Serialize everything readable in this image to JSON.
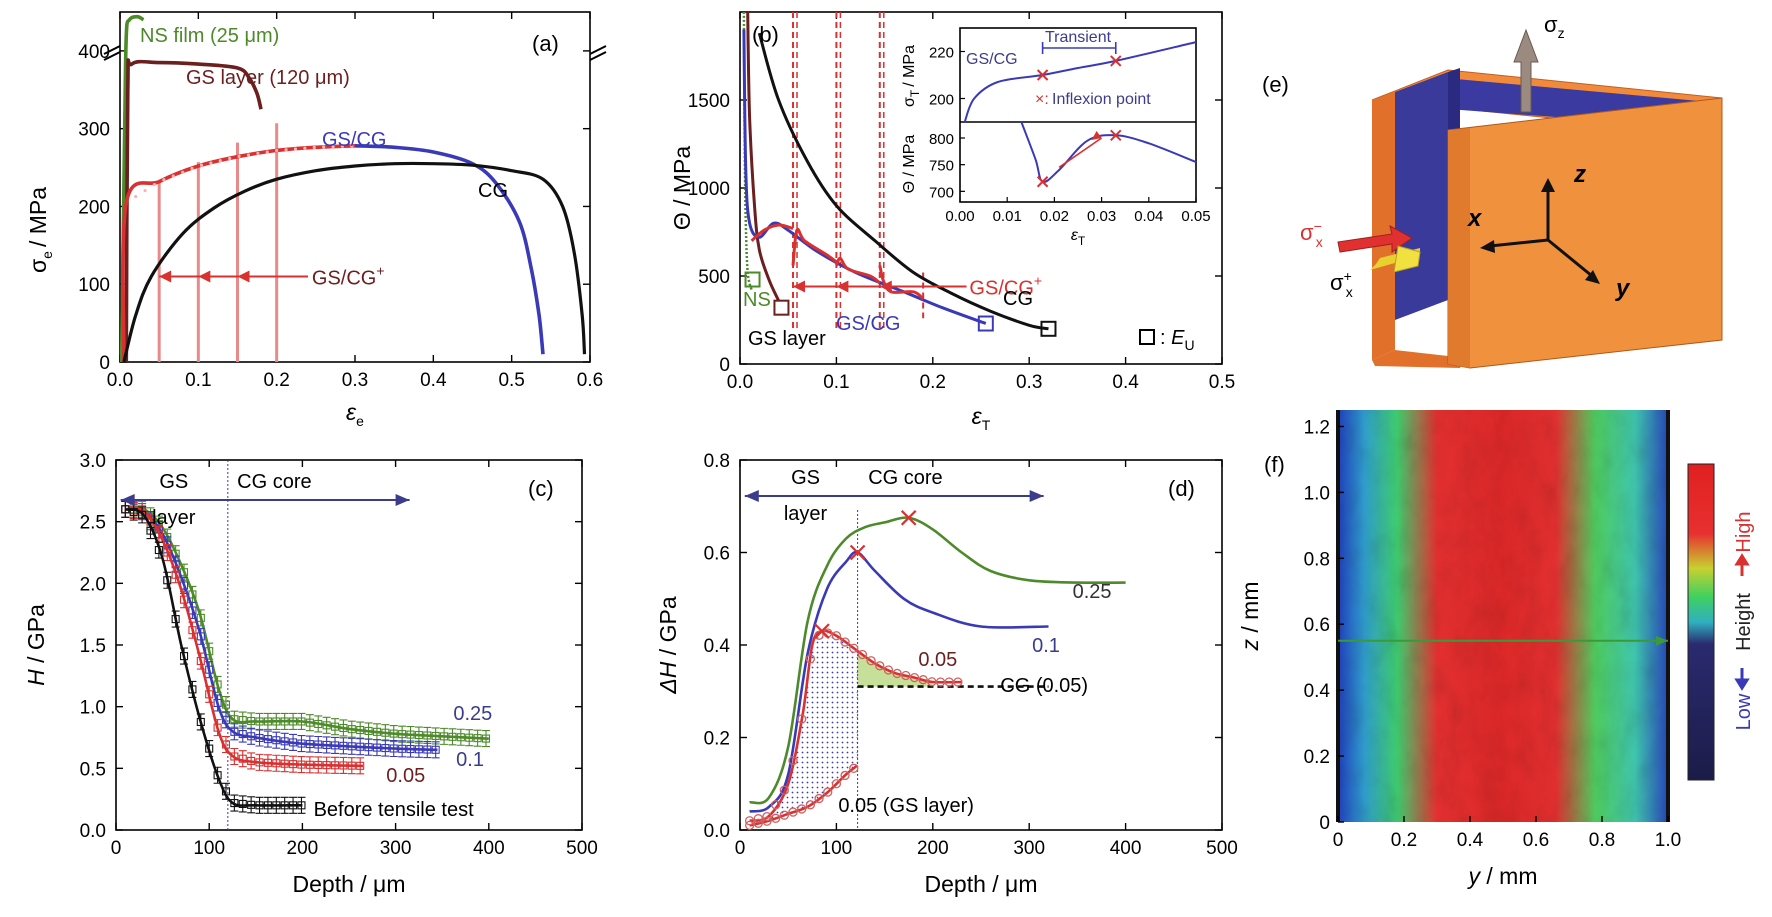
{
  "colors": {
    "red": "#d93030",
    "blue": "#3a3ab8",
    "black": "#111111",
    "green": "#4c8a2a",
    "brown": "#6b1f1f",
    "orange": "#f08a3a",
    "purple": "#3c3c8c"
  },
  "chart_data": [
    {
      "panel": "(a)",
      "type": "line",
      "xlabel": "ε",
      "xlabel_sub": "e",
      "ylabel": "σ",
      "ylabel_sub": "e",
      "ylabel_unit": "/ MPa",
      "xlim": [
        0,
        0.6
      ],
      "ylim": [
        0,
        450
      ],
      "xticks": [
        "0.0",
        "0.1",
        "0.2",
        "0.3",
        "0.4",
        "0.5",
        "0.6"
      ],
      "yticks": [
        "0",
        "100",
        "200",
        "300",
        "400"
      ],
      "series": [
        {
          "name": "NS film (25 μm)",
          "color": "green",
          "points": [
            [
              0.002,
              0
            ],
            [
              0.006,
              300
            ],
            [
              0.008,
              420
            ],
            [
              0.012,
              440
            ],
            [
              0.022,
              444
            ],
            [
              0.03,
              440
            ]
          ]
        },
        {
          "name": "GS layer (120 μm)",
          "color": "brown",
          "points": [
            [
              0.008,
              0
            ],
            [
              0.01,
              350
            ],
            [
              0.015,
              383
            ],
            [
              0.05,
              385
            ],
            [
              0.1,
              383
            ],
            [
              0.15,
              378
            ],
            [
              0.165,
              365
            ],
            [
              0.175,
              345
            ],
            [
              0.18,
              325
            ]
          ]
        },
        {
          "name": "GS/CG",
          "color": "red",
          "points": [
            [
              0.005,
              0
            ],
            [
              0.008,
              205
            ],
            [
              0.05,
              232
            ],
            [
              0.1,
              252
            ],
            [
              0.15,
              264
            ],
            [
              0.2,
              272
            ],
            [
              0.25,
              276
            ],
            [
              0.3,
              278
            ]
          ]
        },
        {
          "name": "GS/CG",
          "color": "blue",
          "points": [
            [
              0.3,
              278
            ],
            [
              0.35,
              276
            ],
            [
              0.4,
              270
            ],
            [
              0.45,
              255
            ],
            [
              0.48,
              230
            ],
            [
              0.51,
              180
            ],
            [
              0.525,
              120
            ],
            [
              0.535,
              60
            ],
            [
              0.54,
              10
            ]
          ]
        },
        {
          "name": "CG",
          "color": "black",
          "points": [
            [
              0.005,
              0
            ],
            [
              0.02,
              60
            ],
            [
              0.04,
              110
            ],
            [
              0.08,
              165
            ],
            [
              0.12,
              198
            ],
            [
              0.16,
              220
            ],
            [
              0.2,
              235
            ],
            [
              0.25,
              246
            ],
            [
              0.3,
              252
            ],
            [
              0.35,
              255
            ],
            [
              0.4,
              255
            ],
            [
              0.45,
              253
            ],
            [
              0.5,
              246
            ],
            [
              0.54,
              235
            ],
            [
              0.565,
              200
            ],
            [
              0.58,
              140
            ],
            [
              0.59,
              60
            ],
            [
              0.593,
              10
            ]
          ]
        }
      ],
      "labels": {
        "ns": "NS film (25 μm)",
        "gs": "GS layer (120 μm)",
        "gscg": "GS/CG",
        "cg": "CG",
        "gscgplus": "GS/CG",
        "plus": "+",
        "panel": "(a)"
      }
    },
    {
      "panel": "(b)",
      "type": "line",
      "xlabel": "ε",
      "xlabel_sub": "T",
      "ylabel": "Θ / MPa",
      "xlim": [
        0,
        0.5
      ],
      "ylim": [
        0,
        2000
      ],
      "xticks": [
        "0.0",
        "0.1",
        "0.2",
        "0.3",
        "0.4",
        "0.5"
      ],
      "yticks": [
        "0",
        "500",
        "1000",
        "1500"
      ],
      "labels": {
        "ns": "NS",
        "gs": "GS layer",
        "gscg": "GS/CG",
        "cg": "CG",
        "gscgplus": "GS/CG",
        "plus": "+",
        "eu": "E",
        "eu_sub": "U",
        "panel": "(b)"
      },
      "inset": {
        "xticks": [
          "0.00",
          "0.01",
          "0.02",
          "0.03",
          "0.04",
          "0.05"
        ],
        "xlabel": "ε",
        "xlabel_sub": "T",
        "top_yticks": [
          "200",
          "220"
        ],
        "top_ylabel": "σ",
        "top_ylabel_sub": "T",
        "top_ylabel_unit": "/ MPa",
        "bottom_yticks": [
          "700",
          "750",
          "800"
        ],
        "bottom_ylabel": "Θ / MPa",
        "transient": "Transient",
        "gscg": "GS/CG",
        "inflexion": "Inflexion point"
      }
    },
    {
      "panel": "(c)",
      "type": "line",
      "xlabel": "Depth / μm",
      "ylabel": "H / GPa",
      "xlim": [
        0,
        500
      ],
      "ylim": [
        0,
        3.0
      ],
      "xticks": [
        "0",
        "100",
        "200",
        "300",
        "400",
        "500"
      ],
      "yticks": [
        "0.0",
        "0.5",
        "1.0",
        "1.5",
        "2.0",
        "2.5",
        "3.0"
      ],
      "series": [
        {
          "name": "Before tensile test",
          "color": "black",
          "points": [
            [
              10,
              2.6
            ],
            [
              30,
              2.55
            ],
            [
              50,
              2.2
            ],
            [
              70,
              1.5
            ],
            [
              90,
              0.9
            ],
            [
              110,
              0.42
            ],
            [
              125,
              0.22
            ],
            [
              150,
              0.2
            ],
            [
              200,
              0.2
            ]
          ]
        },
        {
          "name": "0.05",
          "color": "red",
          "points": [
            [
              10,
              2.6
            ],
            [
              30,
              2.58
            ],
            [
              50,
              2.35
            ],
            [
              70,
              1.95
            ],
            [
              90,
              1.4
            ],
            [
              110,
              0.8
            ],
            [
              125,
              0.6
            ],
            [
              150,
              0.55
            ],
            [
              200,
              0.53
            ],
            [
              265,
              0.52
            ]
          ]
        },
        {
          "name": "0.1",
          "color": "blue",
          "points": [
            [
              10,
              2.6
            ],
            [
              30,
              2.58
            ],
            [
              50,
              2.4
            ],
            [
              70,
              2.05
            ],
            [
              90,
              1.6
            ],
            [
              110,
              1.0
            ],
            [
              125,
              0.8
            ],
            [
              150,
              0.75
            ],
            [
              200,
              0.7
            ],
            [
              300,
              0.66
            ],
            [
              345,
              0.65
            ]
          ]
        },
        {
          "name": "0.25",
          "color": "green",
          "points": [
            [
              10,
              2.6
            ],
            [
              30,
              2.6
            ],
            [
              50,
              2.45
            ],
            [
              70,
              2.15
            ],
            [
              90,
              1.75
            ],
            [
              110,
              1.15
            ],
            [
              125,
              0.9
            ],
            [
              150,
              0.88
            ],
            [
              200,
              0.88
            ],
            [
              250,
              0.82
            ],
            [
              300,
              0.78
            ],
            [
              350,
              0.76
            ],
            [
              400,
              0.74
            ]
          ]
        }
      ],
      "labels": {
        "gs": "GS",
        "layer": "layer",
        "cg": "CG core",
        "before": "Before tensile test",
        "l005": "0.05",
        "l01": "0.1",
        "l025": "0.25",
        "panel": "(c)"
      }
    },
    {
      "panel": "(d)",
      "type": "line",
      "xlabel": "Depth / μm",
      "ylabel": "ΔH / GPa",
      "xlim": [
        0,
        500
      ],
      "ylim": [
        0,
        0.8
      ],
      "xticks": [
        "0",
        "100",
        "200",
        "300",
        "400",
        "500"
      ],
      "yticks": [
        "0.0",
        "0.2",
        "0.4",
        "0.6",
        "0.8"
      ],
      "series": [
        {
          "name": "0.25",
          "color": "green",
          "points": [
            [
              10,
              0.06
            ],
            [
              30,
              0.07
            ],
            [
              50,
              0.18
            ],
            [
              70,
              0.45
            ],
            [
              90,
              0.57
            ],
            [
              110,
              0.63
            ],
            [
              130,
              0.655
            ],
            [
              150,
              0.665
            ],
            [
              175,
              0.675
            ],
            [
              200,
              0.65
            ],
            [
              230,
              0.6
            ],
            [
              260,
              0.56
            ],
            [
              300,
              0.54
            ],
            [
              350,
              0.535
            ],
            [
              400,
              0.535
            ]
          ]
        },
        {
          "name": "0.1",
          "color": "blue",
          "points": [
            [
              10,
              0.04
            ],
            [
              30,
              0.05
            ],
            [
              50,
              0.12
            ],
            [
              70,
              0.38
            ],
            [
              90,
              0.52
            ],
            [
              110,
              0.58
            ],
            [
              122,
              0.6
            ],
            [
              140,
              0.56
            ],
            [
              170,
              0.5
            ],
            [
              200,
              0.47
            ],
            [
              250,
              0.44
            ],
            [
              320,
              0.44
            ]
          ]
        },
        {
          "name": "0.05",
          "color": "red",
          "points": [
            [
              10,
              0.02
            ],
            [
              30,
              0.03
            ],
            [
              50,
              0.1
            ],
            [
              65,
              0.25
            ],
            [
              75,
              0.4
            ],
            [
              85,
              0.43
            ],
            [
              100,
              0.42
            ],
            [
              120,
              0.39
            ],
            [
              140,
              0.36
            ],
            [
              160,
              0.34
            ],
            [
              180,
              0.33
            ],
            [
              200,
              0.32
            ],
            [
              230,
              0.32
            ]
          ]
        },
        {
          "name": "0.05 (GS layer)",
          "color": "red",
          "points": [
            [
              10,
              0.01
            ],
            [
              30,
              0.02
            ],
            [
              50,
              0.035
            ],
            [
              70,
              0.05
            ],
            [
              90,
              0.08
            ],
            [
              110,
              0.12
            ],
            [
              122,
              0.14
            ]
          ]
        },
        {
          "name": "CG (0.05)",
          "color": "black",
          "points": [
            [
              122,
              0.31
            ],
            [
              320,
              0.31
            ]
          ]
        }
      ],
      "labels": {
        "gs": "GS",
        "layer": "layer",
        "cg": "CG core",
        "l025": "0.25",
        "l01": "0.1",
        "l005": "0.05",
        "cg005": "CG (0.05)",
        "gslayer": "0.05 (GS layer)",
        "panel": "(d)"
      }
    },
    {
      "panel": "(e)",
      "type": "diagram",
      "labels": {
        "panel": "(e)",
        "sz": "σ",
        "sz_sub": "z",
        "z": "z",
        "x": "x",
        "y": "y",
        "sxm": "σ",
        "sxm_sup": "−",
        "sxm_sub": "x",
        "sxp": "σ",
        "sxp_sup": "+",
        "sxp_sub": "x"
      }
    },
    {
      "panel": "(f)",
      "type": "heatmap",
      "xlabel": "y / mm",
      "ylabel": "z / mm",
      "xlim": [
        0,
        1.0
      ],
      "ylim": [
        0,
        1.25
      ],
      "xticks": [
        "0",
        "0.2",
        "0.4",
        "0.6",
        "0.8",
        "1.0"
      ],
      "yticks": [
        "0",
        "0.2",
        "0.4",
        "0.6",
        "0.8",
        "1.0",
        "1.2"
      ],
      "colorbar": {
        "high": "High",
        "height": "Height",
        "low": "Low"
      },
      "labels": {
        "panel": "(f)"
      }
    }
  ]
}
